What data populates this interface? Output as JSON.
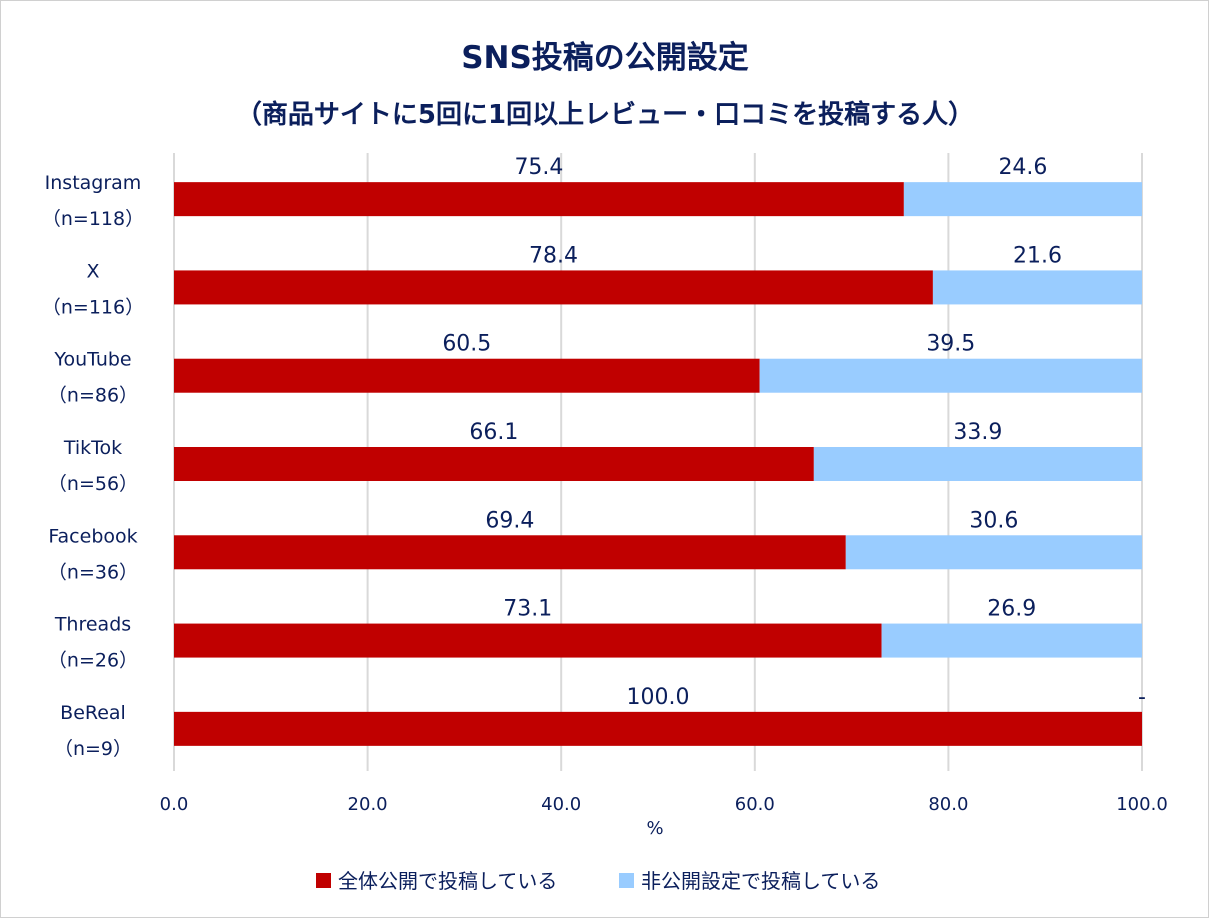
{
  "chart_data": {
    "type": "bar",
    "orientation": "horizontal",
    "stacked": true,
    "title": "SNS投稿の公開設定",
    "subtitle": "（商品サイトに5回に1回以上レビュー・口コミを投稿する人）",
    "xlabel": "%",
    "xlim": [
      0,
      100
    ],
    "x_ticks": [
      "0.0",
      "20.0",
      "40.0",
      "60.0",
      "80.0",
      "100.0"
    ],
    "grid": true,
    "legend_position": "bottom",
    "categories": [
      {
        "name": "Instagram",
        "n": "（n=118）"
      },
      {
        "name": "X",
        "n": "（n=116）"
      },
      {
        "name": "YouTube",
        "n": "（n=86）"
      },
      {
        "name": "TikTok",
        "n": "（n=56）"
      },
      {
        "name": "Facebook",
        "n": "（n=36）"
      },
      {
        "name": "Threads",
        "n": "（n=26）"
      },
      {
        "name": "BeReal",
        "n": "（n=9）"
      }
    ],
    "series": [
      {
        "name": "全体公開で投稿している",
        "color": "#c00000",
        "values": [
          75.4,
          78.4,
          60.5,
          66.1,
          69.4,
          73.1,
          100.0
        ],
        "labels": [
          "75.4",
          "78.4",
          "60.5",
          "66.1",
          "69.4",
          "73.1",
          "100.0"
        ]
      },
      {
        "name": "非公開設定で投稿している",
        "color": "#99ccff",
        "values": [
          24.6,
          21.6,
          39.5,
          33.9,
          30.6,
          26.9,
          0
        ],
        "labels": [
          "24.6",
          "21.6",
          "39.5",
          "33.9",
          "30.6",
          "26.9",
          "-"
        ]
      }
    ]
  }
}
